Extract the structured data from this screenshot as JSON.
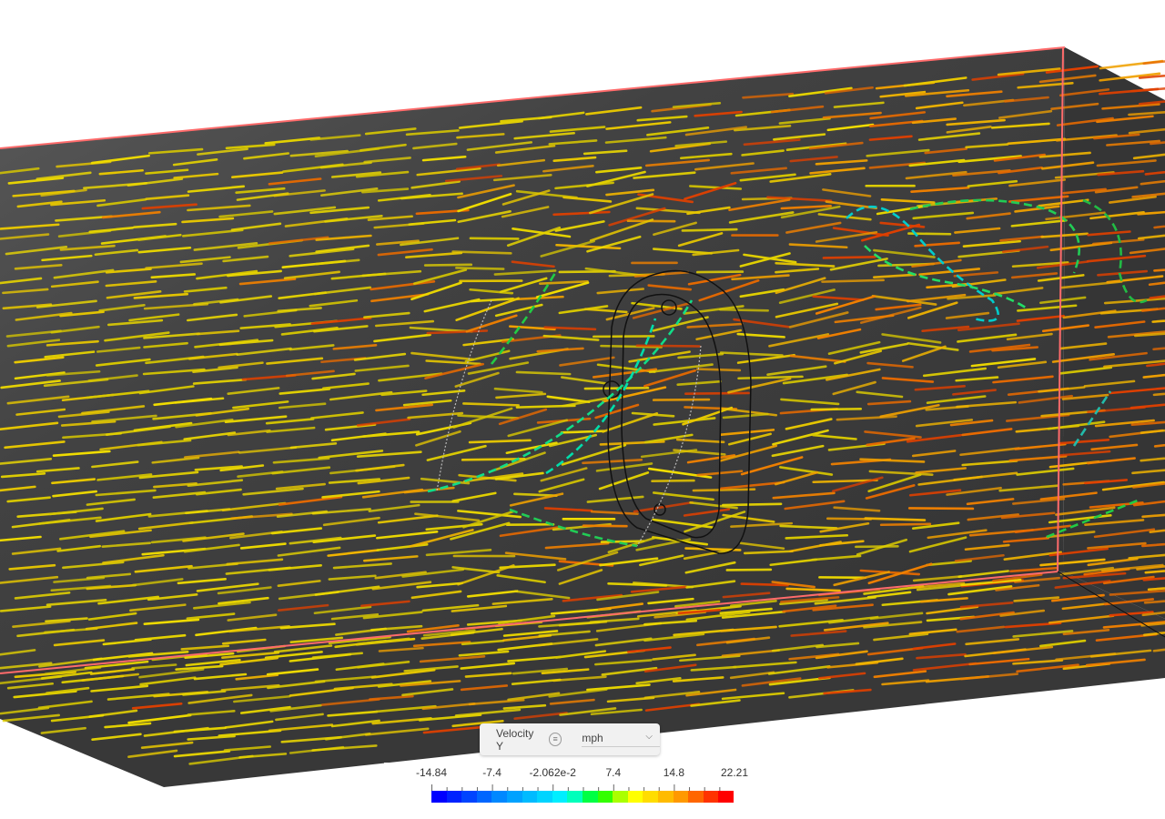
{
  "legend": {
    "title": "Velocity Y",
    "info_icon": "list-icon",
    "unit": "mph",
    "unit_dropdown_icon": "chevron-down-icon",
    "tick_labels": [
      "-14.84",
      "-7.4",
      "-2.062e-2",
      "7.4",
      "14.8",
      "22.21"
    ],
    "min": -14.84,
    "max": 22.21,
    "colors": [
      "#0000ff",
      "#0022ff",
      "#0044ff",
      "#0066ff",
      "#0088ff",
      "#00a2ff",
      "#00bbff",
      "#00d4ff",
      "#00eeff",
      "#00ffbb",
      "#00ff44",
      "#33ff00",
      "#aaff00",
      "#ffff00",
      "#ffdd00",
      "#ffbb00",
      "#ff9900",
      "#ff6600",
      "#ff3300",
      "#ff0000"
    ]
  },
  "scene": {
    "domain_edge_color": "#ff6b6b",
    "background_color": "#3a3a3a"
  }
}
